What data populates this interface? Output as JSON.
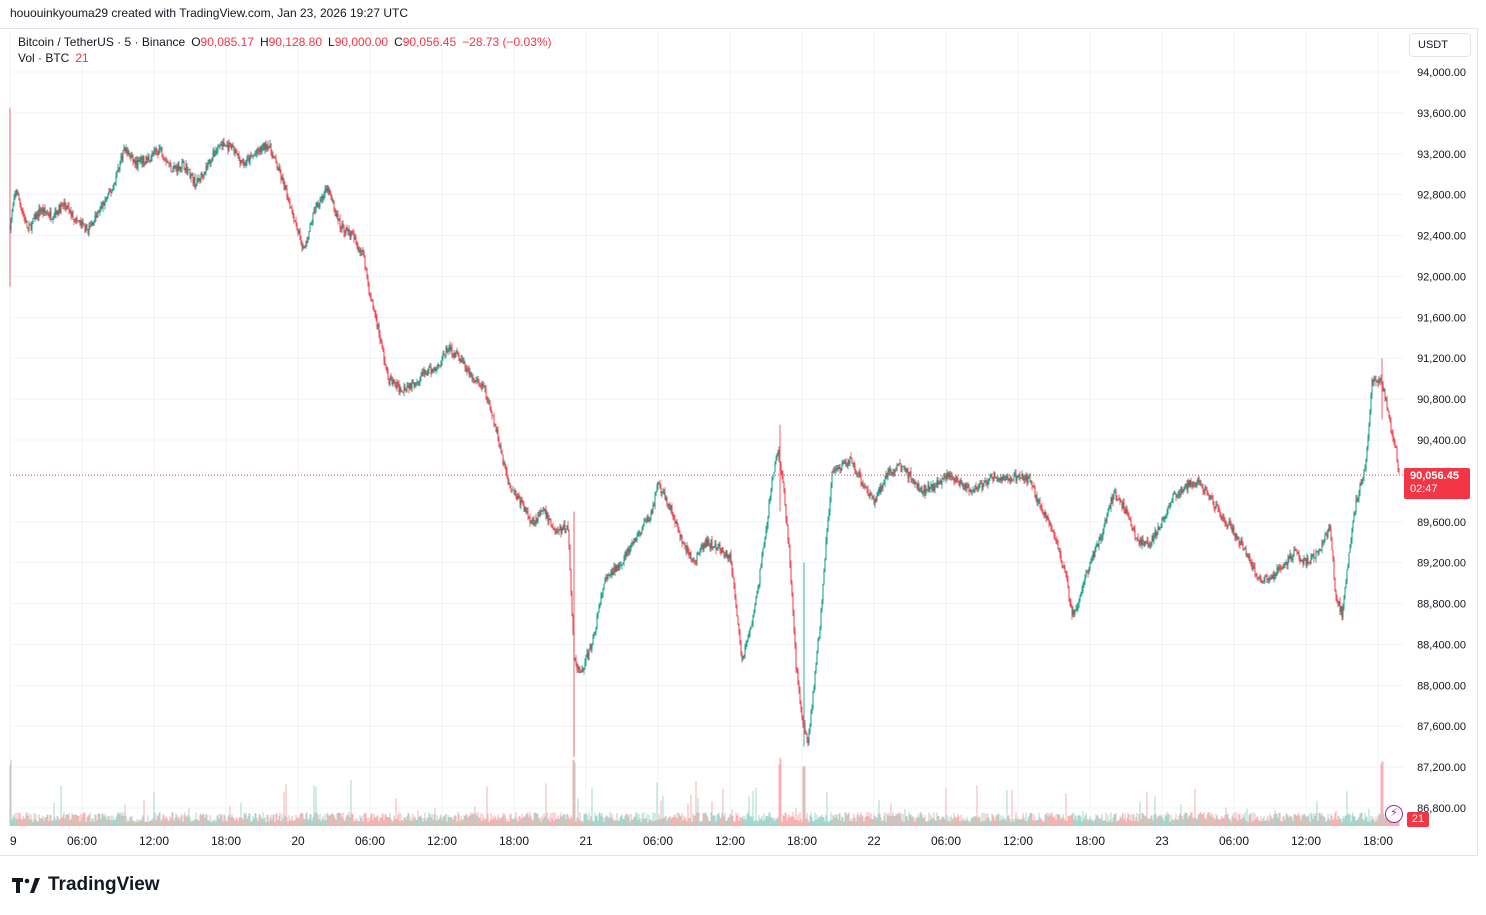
{
  "header": {
    "credit": "hououinkyouma29 created with TradingView.com, Jan 23, 2026 19:27 UTC"
  },
  "legend": {
    "symbol": "Bitcoin / TetherUS · 5 · Binance",
    "open_label": "O",
    "open": "90,085.17",
    "high_label": "H",
    "high": "90,128.80",
    "low_label": "L",
    "low": "90,000.00",
    "close_label": "C",
    "close": "90,056.45",
    "change": "−28.73 (−0.03%)",
    "volume_label": "Vol · BTC",
    "volume_value": "21"
  },
  "price_scale": {
    "currency": "USDT",
    "current_price": "90,056.45",
    "countdown": "02:47",
    "volume_tag": "21"
  },
  "brand": {
    "name": "TradingView"
  },
  "colors": {
    "up": "#089981",
    "down": "#f23645",
    "grid": "#f0f3fa",
    "volume_up": "#9ad3c8",
    "volume_down": "#f7a9a7"
  },
  "chart_data": {
    "type": "candlestick",
    "interval": "5 minute",
    "y_ticks": [
      "94,000.00",
      "93,600.00",
      "93,200.00",
      "92,800.00",
      "92,400.00",
      "92,000.00",
      "91,600.00",
      "91,200.00",
      "90,800.00",
      "90,400.00",
      "89,600.00",
      "89,200.00",
      "88,800.00",
      "88,400.00",
      "88,000.00",
      "87,600.00",
      "87,200.00",
      "86,800.00"
    ],
    "y_tick_values": [
      94000,
      93600,
      93200,
      92800,
      92400,
      92000,
      91600,
      91200,
      90800,
      90400,
      89600,
      89200,
      88800,
      88400,
      88000,
      87600,
      87200,
      86800
    ],
    "x_ticks": [
      "9",
      "06:00",
      "12:00",
      "18:00",
      "20",
      "06:00",
      "12:00",
      "18:00",
      "21",
      "06:00",
      "12:00",
      "18:00",
      "22",
      "06:00",
      "12:00",
      "18:00",
      "23",
      "06:00",
      "12:00",
      "18:00"
    ],
    "x_tick_hours": [
      0,
      6,
      12,
      18,
      24,
      30,
      36,
      42,
      48,
      54,
      60,
      66,
      72,
      78,
      84,
      90,
      96,
      102,
      108,
      114
    ],
    "last_price": 90056.45,
    "price_path": [
      [
        0,
        92500
      ],
      [
        0.5,
        92850
      ],
      [
        1.5,
        92450
      ],
      [
        2.5,
        92650
      ],
      [
        3.5,
        92600
      ],
      [
        4.5,
        92700
      ],
      [
        5.5,
        92550
      ],
      [
        6.5,
        92450
      ],
      [
        7.5,
        92650
      ],
      [
        8.5,
        92850
      ],
      [
        9.5,
        93250
      ],
      [
        10.5,
        93100
      ],
      [
        11.5,
        93150
      ],
      [
        12.5,
        93250
      ],
      [
        13.5,
        93050
      ],
      [
        14.5,
        93100
      ],
      [
        15.5,
        92900
      ],
      [
        16.5,
        93100
      ],
      [
        17.5,
        93300
      ],
      [
        18.5,
        93250
      ],
      [
        19.5,
        93100
      ],
      [
        20.5,
        93200
      ],
      [
        21.5,
        93300
      ],
      [
        22.5,
        93000
      ],
      [
        23.5,
        92650
      ],
      [
        24.5,
        92250
      ],
      [
        25.5,
        92700
      ],
      [
        26.5,
        92850
      ],
      [
        27.5,
        92500
      ],
      [
        28.5,
        92400
      ],
      [
        29.5,
        92200
      ],
      [
        30,
        91800
      ],
      [
        30.5,
        91600
      ],
      [
        31.5,
        91000
      ],
      [
        32.5,
        90900
      ],
      [
        33.5,
        90950
      ],
      [
        34.5,
        91050
      ],
      [
        35.5,
        91100
      ],
      [
        36.5,
        91300
      ],
      [
        37.5,
        91200
      ],
      [
        38.5,
        91000
      ],
      [
        39.5,
        90900
      ],
      [
        40.5,
        90500
      ],
      [
        41.5,
        90000
      ],
      [
        42.5,
        89800
      ],
      [
        43.5,
        89600
      ],
      [
        44.5,
        89700
      ],
      [
        45.5,
        89500
      ],
      [
        46.5,
        89550
      ],
      [
        47,
        88300
      ],
      [
        47.5,
        88100
      ],
      [
        48.5,
        88400
      ],
      [
        49.5,
        89000
      ],
      [
        50.5,
        89150
      ],
      [
        51.5,
        89300
      ],
      [
        52.5,
        89500
      ],
      [
        53.5,
        89700
      ],
      [
        54,
        89950
      ],
      [
        55,
        89750
      ],
      [
        56,
        89400
      ],
      [
        57,
        89200
      ],
      [
        58,
        89400
      ],
      [
        59,
        89350
      ],
      [
        60,
        89250
      ],
      [
        60.5,
        88800
      ],
      [
        61,
        88250
      ],
      [
        62,
        88700
      ],
      [
        63,
        89500
      ],
      [
        63.5,
        90000
      ],
      [
        64,
        90300
      ],
      [
        64.5,
        89900
      ],
      [
        65,
        89200
      ],
      [
        65.5,
        88200
      ],
      [
        66,
        87700
      ],
      [
        66.5,
        87450
      ],
      [
        67,
        88000
      ],
      [
        67.5,
        88600
      ],
      [
        68,
        89400
      ],
      [
        68.5,
        90050
      ],
      [
        69,
        90100
      ],
      [
        70,
        90200
      ],
      [
        71,
        90000
      ],
      [
        72,
        89800
      ],
      [
        73,
        90050
      ],
      [
        74,
        90150
      ],
      [
        75,
        90050
      ],
      [
        76,
        89900
      ],
      [
        77,
        89950
      ],
      [
        78,
        90050
      ],
      [
        79,
        90000
      ],
      [
        80,
        89900
      ],
      [
        81,
        89950
      ],
      [
        82,
        90050
      ],
      [
        83,
        90000
      ],
      [
        84,
        90050
      ],
      [
        85,
        90000
      ],
      [
        86,
        89700
      ],
      [
        87,
        89500
      ],
      [
        88,
        89050
      ],
      [
        88.5,
        88700
      ],
      [
        89,
        88800
      ],
      [
        90,
        89200
      ],
      [
        91,
        89500
      ],
      [
        92,
        89900
      ],
      [
        93,
        89700
      ],
      [
        94,
        89400
      ],
      [
        95,
        89400
      ],
      [
        96,
        89600
      ],
      [
        97,
        89850
      ],
      [
        98,
        89950
      ],
      [
        99,
        90000
      ],
      [
        100,
        89850
      ],
      [
        101,
        89650
      ],
      [
        102,
        89500
      ],
      [
        103,
        89300
      ],
      [
        104,
        89050
      ],
      [
        105,
        89050
      ],
      [
        106,
        89150
      ],
      [
        107,
        89300
      ],
      [
        108,
        89200
      ],
      [
        109,
        89300
      ],
      [
        110,
        89550
      ],
      [
        110.5,
        88850
      ],
      [
        111,
        88700
      ],
      [
        112,
        89700
      ],
      [
        113,
        90200
      ],
      [
        113.5,
        90950
      ],
      [
        114,
        91000
      ],
      [
        114.5,
        90900
      ],
      [
        115,
        90550
      ],
      [
        115.5,
        90300
      ],
      [
        115.8,
        90056
      ]
    ],
    "spikes": [
      {
        "h": 0,
        "high": 93650,
        "low": 91900
      },
      {
        "h": 47,
        "high": 89700,
        "low": 87300
      },
      {
        "h": 66.2,
        "high": 89200,
        "low": 87400
      },
      {
        "h": 64.2,
        "high": 90550,
        "low": 89700
      },
      {
        "h": 114.3,
        "high": 91200,
        "low": 90600
      }
    ],
    "x_range_hours": [
      0,
      116
    ],
    "y_range": [
      86600,
      94200
    ],
    "grid": true
  }
}
